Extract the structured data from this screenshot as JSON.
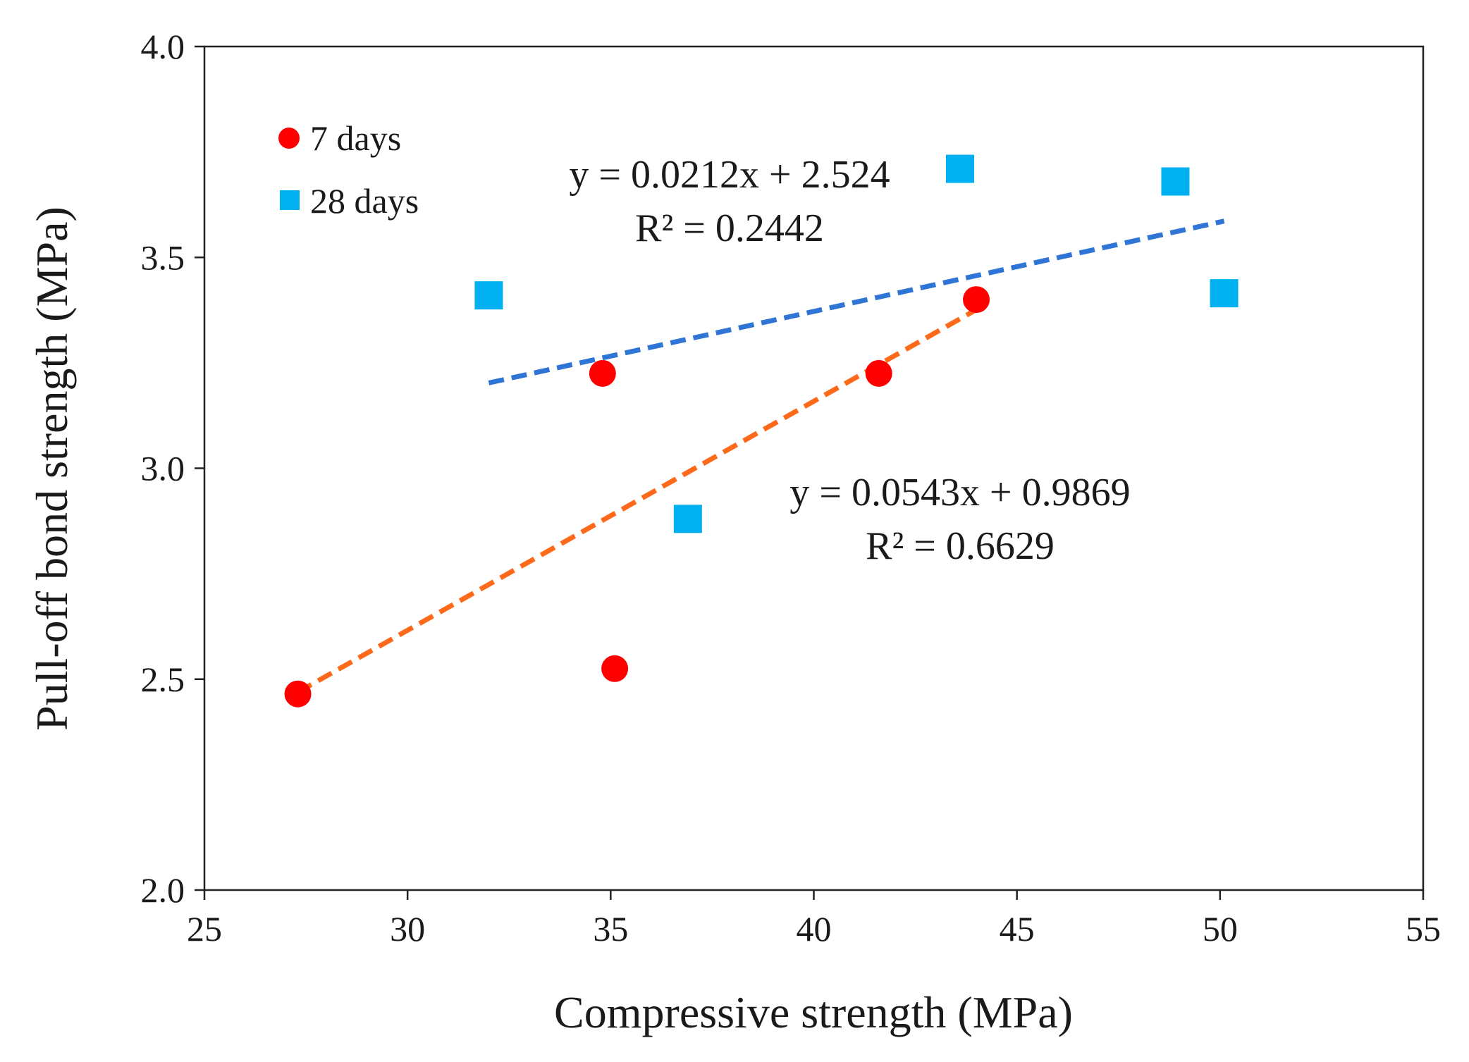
{
  "chart_data": {
    "type": "scatter",
    "title": "",
    "xlabel": "Compressive strength (MPa)",
    "ylabel": "Pull-off bond strength (MPa)",
    "xlim": [
      25,
      55
    ],
    "ylim": [
      2.0,
      4.0
    ],
    "x_ticks": [
      25,
      30,
      35,
      40,
      45,
      50,
      55
    ],
    "y_ticks": [
      2.0,
      2.5,
      3.0,
      3.5,
      4.0
    ],
    "x_tick_labels": [
      "25",
      "30",
      "35",
      "40",
      "45",
      "50",
      "55"
    ],
    "y_tick_labels": [
      "2.0",
      "2.5",
      "3.0",
      "3.5",
      "4.0"
    ],
    "grid": false,
    "legend_position": "top-left",
    "series": [
      {
        "name": "7 days",
        "marker": "circle",
        "color": "#ff0000",
        "points": [
          {
            "x": 27.3,
            "y": 2.465
          },
          {
            "x": 34.8,
            "y": 3.225
          },
          {
            "x": 35.1,
            "y": 2.525
          },
          {
            "x": 41.6,
            "y": 3.225
          },
          {
            "x": 44.0,
            "y": 3.4
          }
        ],
        "trendline": {
          "slope": 0.0543,
          "intercept": 0.9869,
          "x_range": [
            27.3,
            44.0
          ],
          "color": "#ff6a1a",
          "equation": "y = 0.0543x + 0.9869",
          "r2": "R² = 0.6629"
        }
      },
      {
        "name": "28 days",
        "marker": "square",
        "color": "#00b0f0",
        "points": [
          {
            "x": 32.0,
            "y": 3.41
          },
          {
            "x": 36.9,
            "y": 2.88
          },
          {
            "x": 43.6,
            "y": 3.71
          },
          {
            "x": 48.9,
            "y": 3.68
          },
          {
            "x": 50.1,
            "y": 3.415
          }
        ],
        "trendline": {
          "slope": 0.0212,
          "intercept": 2.524,
          "x_range": [
            32.0,
            50.1
          ],
          "color": "#2e75d6",
          "equation": "y = 0.0212x + 2.524",
          "r2": "R² = 0.2442"
        }
      }
    ]
  }
}
